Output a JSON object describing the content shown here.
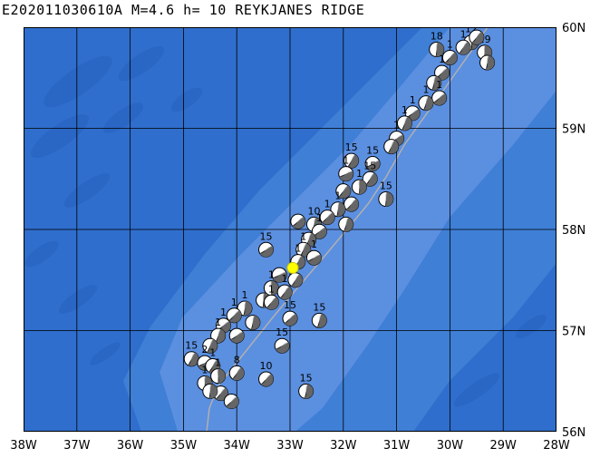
{
  "title": "E202011030610A M=4.6 h= 10 REYKJANES RIDGE",
  "map": {
    "lon_range": [
      -38,
      -28
    ],
    "lat_range": [
      56,
      60
    ],
    "grid": true,
    "x_tick_labels": [
      "38W",
      "37W",
      "36W",
      "35W",
      "34W",
      "33W",
      "32W",
      "31W",
      "30W",
      "29W",
      "28W"
    ],
    "y_tick_labels": [
      "56N",
      "57N",
      "58N",
      "59N",
      "60N"
    ],
    "colors": {
      "ocean_shallow": "#5b8fe0",
      "ocean_mid": "#3f7fd6",
      "ocean_deep": "#2f6ecc",
      "grid": "#000000",
      "plate_boundary": "#b0b0b0",
      "main_event": "#ffff00",
      "mechanism_shade": "#1a1a1a"
    }
  },
  "main_event": {
    "lon": -32.95,
    "lat": 57.62,
    "icon": "star-marker"
  },
  "mechanisms": [
    {
      "lon": -29.6,
      "lat": 59.85,
      "label": "12"
    },
    {
      "lon": -29.75,
      "lat": 59.8,
      "label": "1"
    },
    {
      "lon": -29.35,
      "lat": 59.75,
      "label": "19"
    },
    {
      "lon": -29.5,
      "lat": 59.9,
      "label": "1"
    },
    {
      "lon": -30.25,
      "lat": 59.78,
      "label": "18"
    },
    {
      "lon": -30.0,
      "lat": 59.7,
      "label": "1"
    },
    {
      "lon": -29.3,
      "lat": 59.65,
      "label": ""
    },
    {
      "lon": -30.15,
      "lat": 59.55,
      "label": "1"
    },
    {
      "lon": -30.3,
      "lat": 59.45,
      "label": ""
    },
    {
      "lon": -30.2,
      "lat": 59.3,
      "label": "1"
    },
    {
      "lon": -30.45,
      "lat": 59.25,
      "label": "1"
    },
    {
      "lon": -30.7,
      "lat": 59.15,
      "label": "1"
    },
    {
      "lon": -30.85,
      "lat": 59.05,
      "label": "1"
    },
    {
      "lon": -31.0,
      "lat": 58.9,
      "label": "1"
    },
    {
      "lon": -31.1,
      "lat": 58.82,
      "label": ""
    },
    {
      "lon": -31.45,
      "lat": 58.65,
      "label": "15"
    },
    {
      "lon": -31.85,
      "lat": 58.68,
      "label": "15"
    },
    {
      "lon": -31.95,
      "lat": 58.55,
      "label": "1"
    },
    {
      "lon": -31.5,
      "lat": 58.5,
      "label": "15"
    },
    {
      "lon": -31.7,
      "lat": 58.42,
      "label": "1"
    },
    {
      "lon": -32.0,
      "lat": 58.38,
      "label": ""
    },
    {
      "lon": -31.2,
      "lat": 58.3,
      "label": "15"
    },
    {
      "lon": -31.85,
      "lat": 58.25,
      "label": ""
    },
    {
      "lon": -32.1,
      "lat": 58.2,
      "label": "1"
    },
    {
      "lon": -32.3,
      "lat": 58.12,
      "label": "1"
    },
    {
      "lon": -32.55,
      "lat": 58.05,
      "label": "10"
    },
    {
      "lon": -32.85,
      "lat": 58.08,
      "label": ""
    },
    {
      "lon": -31.95,
      "lat": 58.05,
      "label": ""
    },
    {
      "lon": -32.45,
      "lat": 57.98,
      "label": "1"
    },
    {
      "lon": -32.65,
      "lat": 57.9,
      "label": ""
    },
    {
      "lon": -33.45,
      "lat": 57.8,
      "label": "15"
    },
    {
      "lon": -32.75,
      "lat": 57.8,
      "label": "1"
    },
    {
      "lon": -32.55,
      "lat": 57.72,
      "label": "1"
    },
    {
      "lon": -32.85,
      "lat": 57.68,
      "label": "1"
    },
    {
      "lon": -33.2,
      "lat": 57.55,
      "label": ""
    },
    {
      "lon": -32.9,
      "lat": 57.5,
      "label": ""
    },
    {
      "lon": -33.35,
      "lat": 57.42,
      "label": "1"
    },
    {
      "lon": -33.1,
      "lat": 57.38,
      "label": "1"
    },
    {
      "lon": -33.5,
      "lat": 57.3,
      "label": ""
    },
    {
      "lon": -33.35,
      "lat": 57.28,
      "label": "1"
    },
    {
      "lon": -33.85,
      "lat": 57.22,
      "label": "1"
    },
    {
      "lon": -34.05,
      "lat": 57.15,
      "label": "1"
    },
    {
      "lon": -33.7,
      "lat": 57.08,
      "label": ""
    },
    {
      "lon": -33.0,
      "lat": 57.12,
      "label": "15"
    },
    {
      "lon": -32.45,
      "lat": 57.1,
      "label": "15"
    },
    {
      "lon": -34.25,
      "lat": 57.05,
      "label": "1"
    },
    {
      "lon": -34.35,
      "lat": 56.95,
      "label": "1"
    },
    {
      "lon": -34.0,
      "lat": 56.95,
      "label": ""
    },
    {
      "lon": -34.5,
      "lat": 56.85,
      "label": ""
    },
    {
      "lon": -33.15,
      "lat": 56.85,
      "label": "15"
    },
    {
      "lon": -34.85,
      "lat": 56.72,
      "label": "15"
    },
    {
      "lon": -34.6,
      "lat": 56.68,
      "label": "2"
    },
    {
      "lon": -34.45,
      "lat": 56.65,
      "label": "1"
    },
    {
      "lon": -34.35,
      "lat": 56.55,
      "label": "1"
    },
    {
      "lon": -34.0,
      "lat": 56.58,
      "label": "8"
    },
    {
      "lon": -34.6,
      "lat": 56.48,
      "label": "1"
    },
    {
      "lon": -34.3,
      "lat": 56.38,
      "label": ""
    },
    {
      "lon": -34.5,
      "lat": 56.4,
      "label": ""
    },
    {
      "lon": -33.45,
      "lat": 56.52,
      "label": "10"
    },
    {
      "lon": -32.7,
      "lat": 56.4,
      "label": "15"
    },
    {
      "lon": -34.1,
      "lat": 56.3,
      "label": ""
    }
  ]
}
